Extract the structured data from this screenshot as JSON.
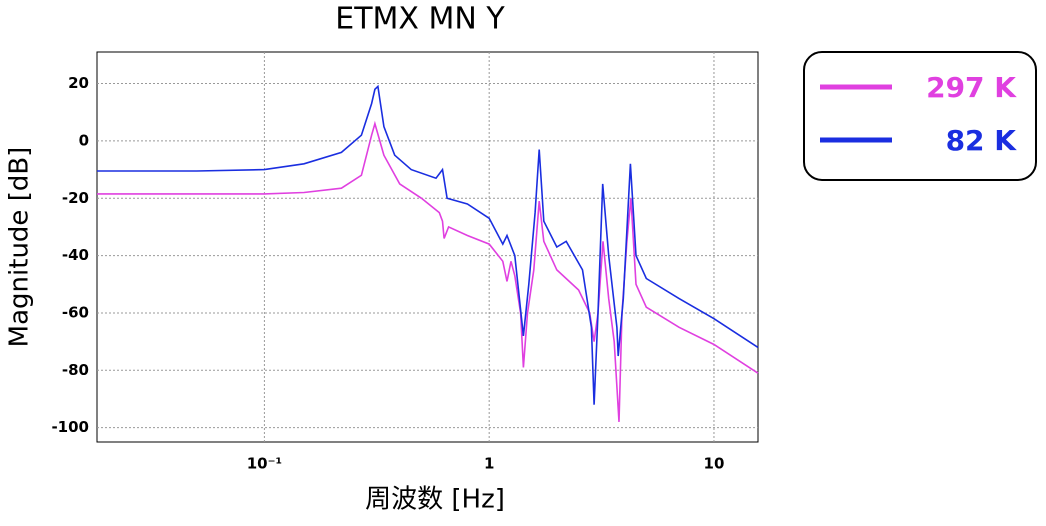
{
  "chart_data": {
    "type": "line",
    "title": "ETMX MN Y",
    "x_label": "周波数 [Hz]",
    "y_label": "Magnitude [dB]",
    "x_scale": "log",
    "grid": true,
    "xlim": [
      0.018,
      15.7
    ],
    "ylim": [
      -105,
      31
    ],
    "xticks": [
      {
        "value": 0.1,
        "label": "10⁻¹"
      },
      1,
      10
    ],
    "yticks": [
      -100,
      -80,
      -60,
      -40,
      -20,
      0,
      20
    ],
    "series": [
      {
        "name": "297 K",
        "color": "#e040e0",
        "x": [
          0.018,
          0.05,
          0.1,
          0.15,
          0.22,
          0.27,
          0.3,
          0.31,
          0.34,
          0.4,
          0.5,
          0.6,
          0.62,
          0.63,
          0.66,
          0.8,
          1.0,
          1.15,
          1.2,
          1.25,
          1.3,
          1.38,
          1.42,
          1.48,
          1.58,
          1.67,
          1.75,
          2.0,
          2.5,
          2.8,
          2.93,
          3.05,
          3.21,
          3.4,
          3.6,
          3.78,
          3.9,
          4.1,
          4.27,
          4.5,
          5,
          7,
          10,
          15.7
        ],
        "values": [
          -18.5,
          -18.5,
          -18.5,
          -18,
          -16.5,
          -12,
          2,
          6,
          -5,
          -15,
          -20,
          -25,
          -28,
          -34,
          -30,
          -33,
          -36,
          -42,
          -49,
          -42,
          -47,
          -60,
          -79,
          -60,
          -45,
          -21,
          -35,
          -45,
          -52,
          -60,
          -70,
          -60,
          -35,
          -55,
          -70,
          -98,
          -60,
          -35,
          -20,
          -50,
          -58,
          -65,
          -71,
          -81
        ]
      },
      {
        "name": "82 K",
        "color": "#1a2ee0",
        "x": [
          0.018,
          0.05,
          0.1,
          0.15,
          0.22,
          0.27,
          0.3,
          0.31,
          0.32,
          0.34,
          0.38,
          0.45,
          0.58,
          0.62,
          0.65,
          0.8,
          1.0,
          1.15,
          1.2,
          1.3,
          1.42,
          1.5,
          1.6,
          1.67,
          1.75,
          2.0,
          2.2,
          2.6,
          2.85,
          2.93,
          3.05,
          3.2,
          3.4,
          3.7,
          3.75,
          3.95,
          4.25,
          4.5,
          5,
          7,
          10,
          15.7
        ],
        "values": [
          -10.5,
          -10.5,
          -10,
          -8,
          -4,
          2,
          13,
          18,
          19,
          5,
          -5,
          -10,
          -13,
          -10,
          -20,
          -22,
          -27,
          -36,
          -33,
          -40,
          -68,
          -50,
          -25,
          -3,
          -28,
          -37,
          -35,
          -45,
          -65,
          -92,
          -60,
          -15,
          -40,
          -65,
          -75,
          -55,
          -8,
          -40,
          -48,
          -55,
          -62,
          -72
        ]
      }
    ]
  }
}
